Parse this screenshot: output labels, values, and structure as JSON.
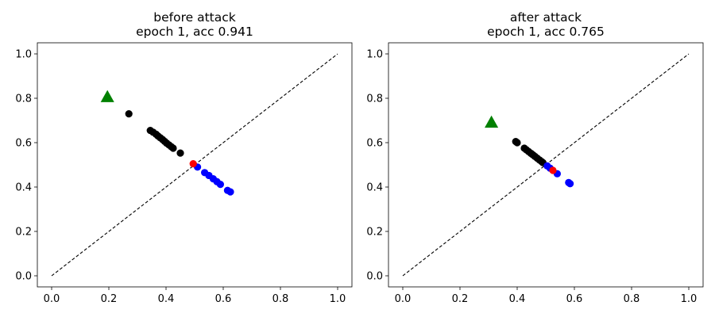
{
  "chart_data": [
    {
      "type": "scatter",
      "title_line1": "before attack",
      "title_line2": "epoch 1, acc 0.941",
      "xlabel": "",
      "ylabel": "",
      "xlim": [
        -0.05,
        1.05
      ],
      "ylim": [
        -0.05,
        1.05
      ],
      "xticks": [
        "0.0",
        "0.2",
        "0.4",
        "0.6",
        "0.8",
        "1.0"
      ],
      "yticks": [
        "0.0",
        "0.2",
        "0.4",
        "0.6",
        "0.8",
        "1.0"
      ],
      "grid": false,
      "diagonal": {
        "x": [
          0,
          1
        ],
        "y": [
          0,
          1
        ],
        "color": "#000000",
        "style": "dashed"
      },
      "series": [
        {
          "color": "#000000",
          "marker": "circle",
          "points": [
            [
              0.27,
              0.73
            ],
            [
              0.345,
              0.655
            ],
            [
              0.355,
              0.647
            ],
            [
              0.365,
              0.638
            ],
            [
              0.372,
              0.63
            ],
            [
              0.38,
              0.622
            ],
            [
              0.388,
              0.614
            ],
            [
              0.395,
              0.606
            ],
            [
              0.402,
              0.598
            ],
            [
              0.41,
              0.59
            ],
            [
              0.418,
              0.582
            ],
            [
              0.425,
              0.575
            ],
            [
              0.45,
              0.553
            ]
          ]
        },
        {
          "color": "#0000ff",
          "marker": "circle",
          "points": [
            [
              0.51,
              0.49
            ],
            [
              0.535,
              0.465
            ],
            [
              0.55,
              0.452
            ],
            [
              0.565,
              0.437
            ],
            [
              0.578,
              0.424
            ],
            [
              0.59,
              0.412
            ],
            [
              0.615,
              0.385
            ],
            [
              0.625,
              0.378
            ]
          ]
        },
        {
          "color": "#ff0000",
          "marker": "circle",
          "points": [
            [
              0.495,
              0.505
            ]
          ]
        },
        {
          "color": "#008000",
          "marker": "triangle",
          "points": [
            [
              0.195,
              0.805
            ]
          ]
        }
      ]
    },
    {
      "type": "scatter",
      "title_line1": "after attack",
      "title_line2": "epoch 1, acc 0.765",
      "xlabel": "",
      "ylabel": "",
      "xlim": [
        -0.05,
        1.05
      ],
      "ylim": [
        -0.05,
        1.05
      ],
      "xticks": [
        "0.0",
        "0.2",
        "0.4",
        "0.6",
        "0.8",
        "1.0"
      ],
      "yticks": [
        "0.0",
        "0.2",
        "0.4",
        "0.6",
        "0.8",
        "1.0"
      ],
      "grid": false,
      "diagonal": {
        "x": [
          0,
          1
        ],
        "y": [
          0,
          1
        ],
        "color": "#000000",
        "style": "dashed"
      },
      "series": [
        {
          "color": "#000000",
          "marker": "circle",
          "points": [
            [
              0.395,
              0.605
            ],
            [
              0.4,
              0.6
            ],
            [
              0.425,
              0.575
            ],
            [
              0.432,
              0.568
            ],
            [
              0.44,
              0.56
            ],
            [
              0.448,
              0.552
            ],
            [
              0.455,
              0.545
            ],
            [
              0.462,
              0.538
            ],
            [
              0.47,
              0.53
            ],
            [
              0.478,
              0.522
            ],
            [
              0.485,
              0.515
            ],
            [
              0.49,
              0.51
            ]
          ]
        },
        {
          "color": "#0000ff",
          "marker": "circle",
          "points": [
            [
              0.505,
              0.495
            ],
            [
              0.515,
              0.485
            ],
            [
              0.54,
              0.46
            ],
            [
              0.58,
              0.42
            ],
            [
              0.585,
              0.415
            ]
          ]
        },
        {
          "color": "#ff0000",
          "marker": "circle",
          "points": [
            [
              0.525,
              0.475
            ]
          ]
        },
        {
          "color": "#008000",
          "marker": "triangle",
          "points": [
            [
              0.31,
              0.69
            ]
          ]
        }
      ]
    }
  ]
}
